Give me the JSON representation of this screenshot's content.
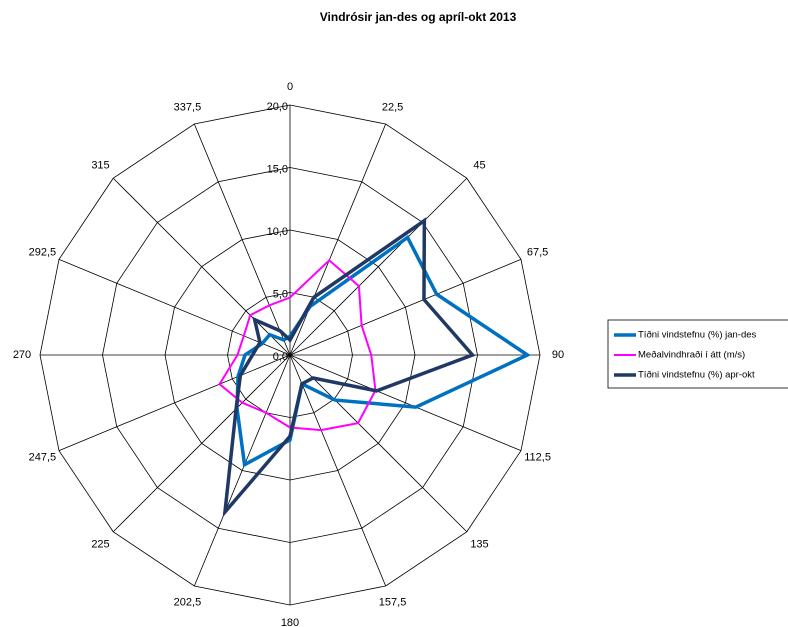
{
  "chart_data": {
    "type": "radar",
    "title": "Vindrósir jan-des  og apríl-okt 2013",
    "categories": [
      "0",
      "22,5",
      "45",
      "67,5",
      "90",
      "112,5",
      "135",
      "157,5",
      "180",
      "202,5",
      "225",
      "247,5",
      "270",
      "292,5",
      "315",
      "337,5"
    ],
    "ylim": [
      0,
      20
    ],
    "yticks": [
      {
        "value": 0,
        "label": "0,0"
      },
      {
        "value": 5,
        "label": "5,0"
      },
      {
        "value": 10,
        "label": "10,0"
      },
      {
        "value": 15,
        "label": "15,0"
      },
      {
        "value": 20,
        "label": "20,0"
      }
    ],
    "series": [
      {
        "name": "Tíðni vindstefnu (%) jan-des",
        "color": "#0070c0",
        "values": [
          1.5,
          4.2,
          13.3,
          12.7,
          19,
          10.9,
          5.1,
          2.5,
          6.8,
          9.5,
          6,
          4.5,
          3.6,
          2.4,
          2.3,
          1.3
        ]
      },
      {
        "name": "Meðalvindhraði í átt (m/s)",
        "color": "#ff00ff",
        "values": [
          4.6,
          8.2,
          7.8,
          6.2,
          6.5,
          7.4,
          7.7,
          6.5,
          5.8,
          5,
          5.4,
          6.1,
          4.2,
          4,
          4.5,
          4.3
        ]
      },
      {
        "name": "Tíðni vindstefnu (%) apr-okt",
        "color": "#203864",
        "values": [
          1.2,
          5,
          15.2,
          11.6,
          14.6,
          7.5,
          2.6,
          2.5,
          6.5,
          13.6,
          6.1,
          4.3,
          3,
          2.6,
          4,
          2.1
        ]
      }
    ]
  }
}
